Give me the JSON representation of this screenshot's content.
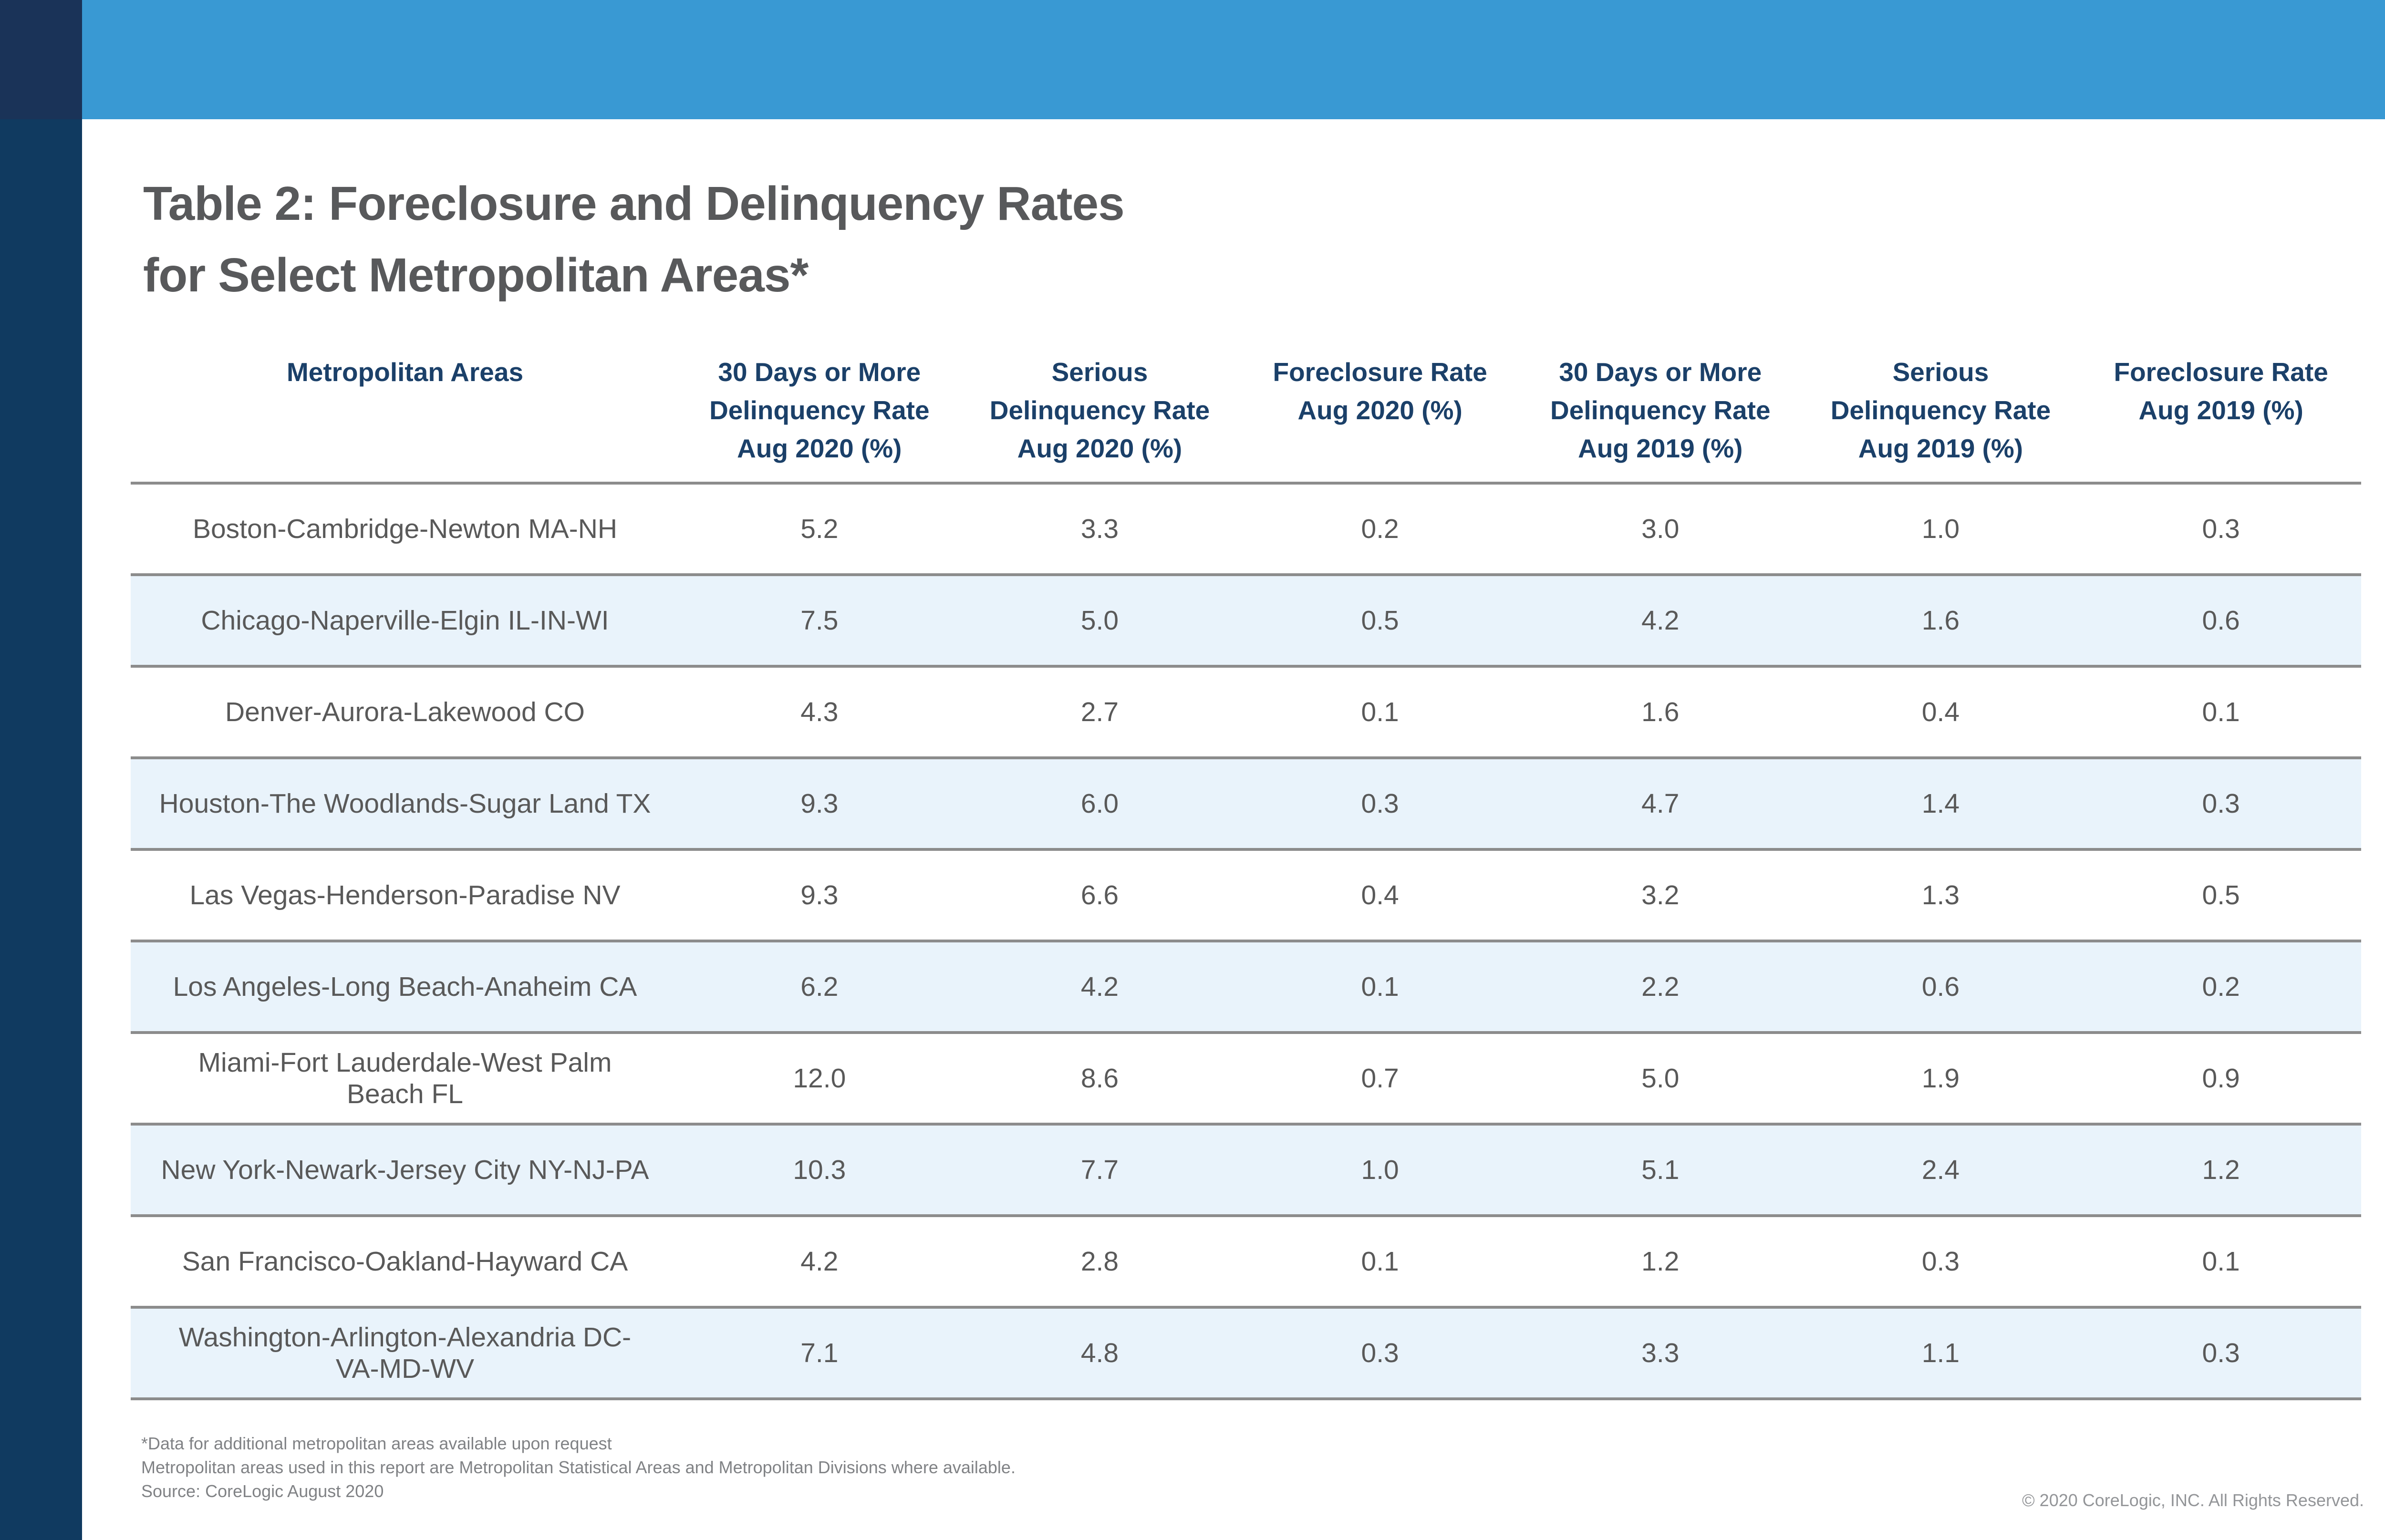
{
  "page": {
    "title": "Table 2: Foreclosure and Delinquency Rates\nfor Select Metropolitan Areas*",
    "copyright": "© 2020 CoreLogic, INC. All Rights Reserved."
  },
  "colors": {
    "sidebar": "#103a60",
    "sidebar_top_segment": "#1a3358",
    "top_banner": "#3999d3",
    "header_text": "#1b4069",
    "title_text": "#58595b",
    "body_text": "#595959",
    "shaded_row": "#e9f3fb",
    "divider_line": "#8c8c8c",
    "footnote_text": "#808285",
    "copyright_text": "#939598"
  },
  "table": {
    "columns": [
      "Metropolitan Areas",
      "30 Days or More\nDelinquency Rate\nAug 2020 (%)",
      "Serious\nDelinquency Rate\nAug 2020 (%)",
      "Foreclosure Rate\nAug 2020 (%)",
      "30 Days or More\nDelinquency Rate\nAug 2019 (%)",
      "Serious\nDelinquency Rate\nAug 2019 (%)",
      "Foreclosure Rate\nAug 2019 (%)"
    ],
    "rows": [
      {
        "area": "Boston-Cambridge-Newton MA-NH",
        "values": [
          "5.2",
          "3.3",
          "0.2",
          "3.0",
          "1.0",
          "0.3"
        ]
      },
      {
        "area": "Chicago-Naperville-Elgin IL-IN-WI",
        "values": [
          "7.5",
          "5.0",
          "0.5",
          "4.2",
          "1.6",
          "0.6"
        ]
      },
      {
        "area": "Denver-Aurora-Lakewood CO",
        "values": [
          "4.3",
          "2.7",
          "0.1",
          "1.6",
          "0.4",
          "0.1"
        ]
      },
      {
        "area": "Houston-The Woodlands-Sugar Land TX",
        "values": [
          "9.3",
          "6.0",
          "0.3",
          "4.7",
          "1.4",
          "0.3"
        ]
      },
      {
        "area": "Las Vegas-Henderson-Paradise NV",
        "values": [
          "9.3",
          "6.6",
          "0.4",
          "3.2",
          "1.3",
          "0.5"
        ]
      },
      {
        "area": "Los Angeles-Long Beach-Anaheim CA",
        "values": [
          "6.2",
          "4.2",
          "0.1",
          "2.2",
          "0.6",
          "0.2"
        ]
      },
      {
        "area": "Miami-Fort Lauderdale-West Palm\nBeach FL",
        "values": [
          "12.0",
          "8.6",
          "0.7",
          "5.0",
          "1.9",
          "0.9"
        ]
      },
      {
        "area": "New York-Newark-Jersey City NY-NJ-PA",
        "values": [
          "10.3",
          "7.7",
          "1.0",
          "5.1",
          "2.4",
          "1.2"
        ]
      },
      {
        "area": "San Francisco-Oakland-Hayward CA",
        "values": [
          "4.2",
          "2.8",
          "0.1",
          "1.2",
          "0.3",
          "0.1"
        ]
      },
      {
        "area": "Washington-Arlington-Alexandria DC-\nVA-MD-WV",
        "values": [
          "7.1",
          "4.8",
          "0.3",
          "3.3",
          "1.1",
          "0.3"
        ]
      }
    ]
  },
  "footnotes": [
    "*Data for additional metropolitan areas available upon request",
    "Metropolitan areas used in this report are Metropolitan Statistical Areas and Metropolitan Divisions where available.",
    "Source: CoreLogic August 2020"
  ]
}
